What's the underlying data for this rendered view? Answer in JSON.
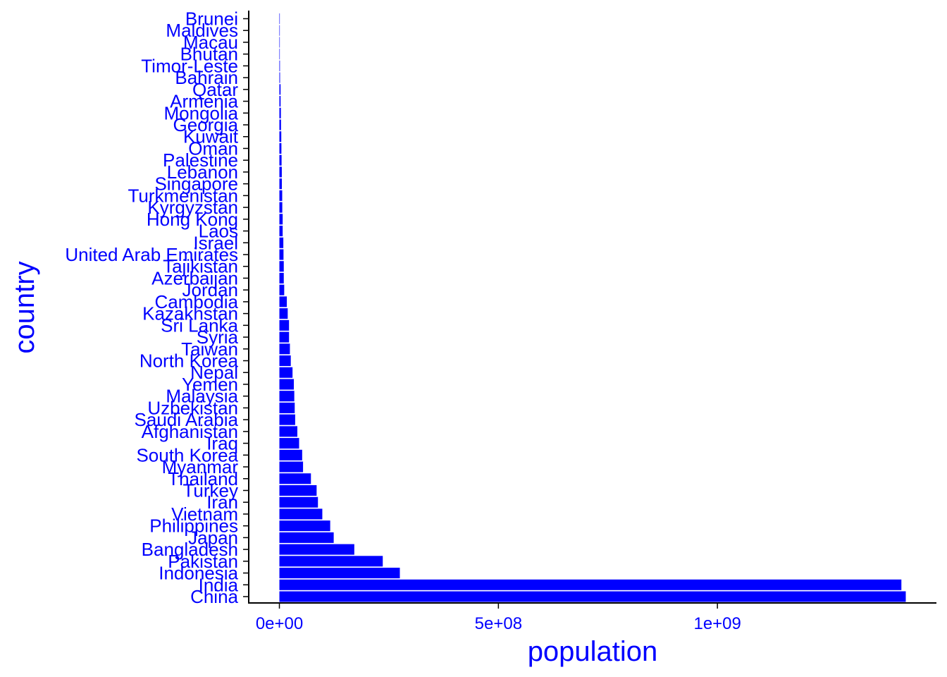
{
  "colors": {
    "accent": "#0000ff",
    "axis": "#000000",
    "background": "#ffffff"
  },
  "chart_data": {
    "type": "bar",
    "orientation": "horizontal",
    "xlabel": "population",
    "ylabel": "country",
    "xlim": [
      -70000000,
      1500000000
    ],
    "xticks": [
      0,
      500000000,
      1000000000
    ],
    "xtick_labels": [
      "0e+00",
      "5e+08",
      "1e+09"
    ],
    "grid": false,
    "legend": "none",
    "categories": [
      "China",
      "India",
      "Indonesia",
      "Pakistan",
      "Bangladesh",
      "Japan",
      "Philippines",
      "Vietnam",
      "Iran",
      "Turkey",
      "Thailand",
      "Myanmar",
      "South Korea",
      "Iraq",
      "Afghanistan",
      "Saudi Arabia",
      "Uzbekistan",
      "Malaysia",
      "Yemen",
      "Nepal",
      "North Korea",
      "Taiwan",
      "Syria",
      "Sri Lanka",
      "Kazakhstan",
      "Cambodia",
      "Jordan",
      "Azerbaijan",
      "Tajikistan",
      "United Arab Emirates",
      "Israel",
      "Laos",
      "Hong Kong",
      "Kyrgyzstan",
      "Turkmenistan",
      "Singapore",
      "Lebanon",
      "Palestine",
      "Oman",
      "Kuwait",
      "Georgia",
      "Mongolia",
      "Armenia",
      "Qatar",
      "Bahrain",
      "Timor-Leste",
      "Bhutan",
      "Macau",
      "Maldives",
      "Brunei"
    ],
    "values": [
      1430000000,
      1420000000,
      275000000,
      236000000,
      171000000,
      124000000,
      116000000,
      98000000,
      88000000,
      85000000,
      72000000,
      54000000,
      52000000,
      45000000,
      41000000,
      36000000,
      35000000,
      34000000,
      33000000,
      30000000,
      26000000,
      24000000,
      22000000,
      22000000,
      19000000,
      17000000,
      11000000,
      10000000,
      10000000,
      9400000,
      9000000,
      7500000,
      7500000,
      6600000,
      6400000,
      5600000,
      5500000,
      5000000,
      4600000,
      4300000,
      3700000,
      3400000,
      2800000,
      2700000,
      1500000,
      1300000,
      780000,
      700000,
      520000,
      450000
    ]
  }
}
